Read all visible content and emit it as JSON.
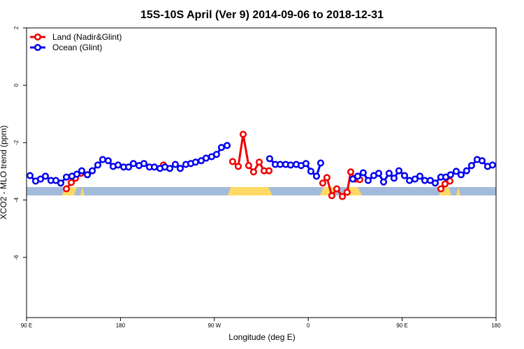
{
  "chart_data": {
    "type": "line",
    "title": "15S-10S April (Ver 9)   2014-09-06 to 2018-12-31",
    "x_label": "Longitude (deg E)",
    "y_label": "XCO2 - MLO trend (ppm)",
    "xlim": [
      90,
      540
    ],
    "xticks": [
      {
        "value": 90,
        "label": "90 E"
      },
      {
        "value": 180,
        "label": "180"
      },
      {
        "value": 270,
        "label": "90 W"
      },
      {
        "value": 360,
        "label": "0"
      },
      {
        "value": 450,
        "label": "90 E"
      },
      {
        "value": 540,
        "label": "180"
      }
    ],
    "ylim": [
      -8.1,
      2
    ],
    "yticks": [
      -6,
      -4,
      -2,
      0,
      2
    ],
    "legend": "topleft",
    "series": [
      {
        "name": "Land (Nadir&Glint)",
        "color": "#ee0000",
        "x": [
          128.2,
          132.9,
          136.9,
          142.2,
          180,
          221.2,
          300,
          287.5,
          292.9,
          297.6,
          302.9,
          307.6,
          313.0,
          317.7,
          322.4,
          345,
          373.9,
          377.9,
          382.6,
          387.3,
          392.7,
          397.3,
          400.7,
          405.4,
          409.4,
          450,
          487.1,
          491.1,
          495.8
        ],
        "values": [
          -3.61,
          -3.39,
          -3.24,
          -3.07,
          null,
          -2.78,
          null,
          -2.66,
          -2.83,
          -1.71,
          -2.8,
          -3.02,
          -2.68,
          -2.98,
          -2.98,
          null,
          -3.41,
          -3.22,
          -3.85,
          -3.61,
          -3.88,
          -3.73,
          -3.02,
          -3.27,
          -3.29,
          null,
          -3.61,
          -3.44,
          -3.34
        ]
      },
      {
        "name": "Ocean (Glint)",
        "color": "#0000ee",
        "x": [
          93.3,
          98.7,
          103.4,
          108.1,
          113.4,
          118.1,
          122.8,
          128.2,
          133.5,
          138.2,
          142.9,
          148.3,
          153.0,
          158.3,
          163.0,
          168.3,
          173.0,
          177.7,
          183.1,
          187.8,
          192.4,
          197.8,
          202.5,
          207.8,
          212.5,
          217.9,
          222.6,
          227.3,
          232.6,
          237.3,
          242.7,
          247.4,
          252.0,
          257.4,
          262.1,
          267.4,
          272.1,
          276.8,
          282.2,
          300,
          323.0,
          328.4,
          333.1,
          338.4,
          343.1,
          348.5,
          353.2,
          357.8,
          362.5,
          367.9,
          371.9,
          385,
          402.7,
          407.4,
          412.7,
          417.4,
          422.8,
          427.5,
          432.2,
          437.5,
          442.2,
          446.9,
          452.3,
          457.0,
          462.3,
          467.0,
          471.7,
          477.0,
          481.7,
          487.1,
          491.8,
          496.4,
          501.8,
          506.5,
          511.8,
          516.5,
          521.9,
          526.6,
          531.9,
          536.6
        ],
        "values": [
          -3.15,
          -3.34,
          -3.27,
          -3.17,
          -3.32,
          -3.32,
          -3.41,
          -3.2,
          -3.17,
          -3.1,
          -2.98,
          -3.12,
          -2.98,
          -2.78,
          -2.59,
          -2.63,
          -2.83,
          -2.78,
          -2.85,
          -2.85,
          -2.73,
          -2.8,
          -2.73,
          -2.85,
          -2.85,
          -2.9,
          -2.85,
          -2.9,
          -2.76,
          -2.9,
          -2.76,
          -2.73,
          -2.68,
          -2.63,
          -2.54,
          -2.49,
          -2.41,
          -2.17,
          -2.1,
          null,
          -2.56,
          -2.76,
          -2.76,
          -2.76,
          -2.78,
          -2.76,
          -2.8,
          -2.73,
          -3.0,
          -3.17,
          -2.71,
          null,
          -3.27,
          -3.17,
          -3.05,
          -3.32,
          -3.15,
          -3.07,
          -3.37,
          -3.07,
          -3.24,
          -2.98,
          -3.15,
          -3.32,
          -3.27,
          -3.17,
          -3.32,
          -3.32,
          -3.41,
          -3.2,
          -3.2,
          -3.12,
          -3.0,
          -3.12,
          -2.98,
          -2.8,
          -2.59,
          -2.63,
          -2.83,
          -2.78
        ]
      }
    ]
  }
}
